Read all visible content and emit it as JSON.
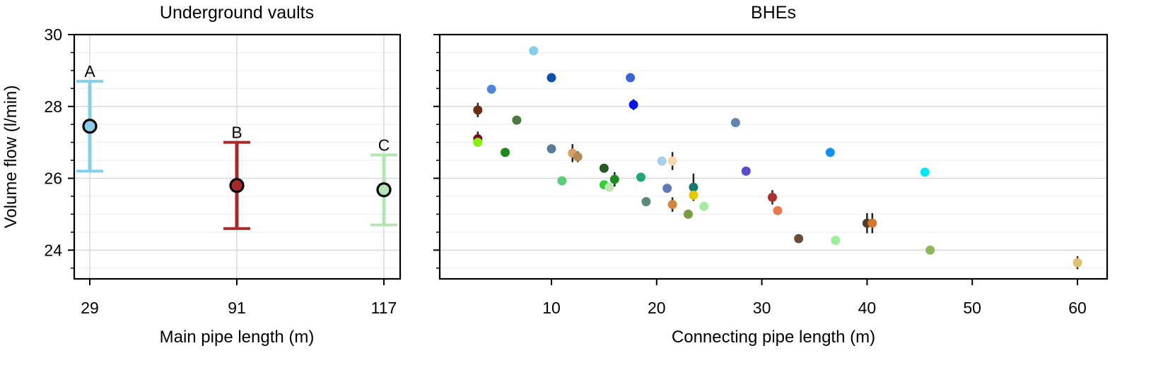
{
  "chart_data": [
    {
      "type": "scatter",
      "title": "Underground vaults",
      "xlabel": "Main pipe length (m)",
      "ylabel": "Volume flow (l/min)",
      "ylim": [
        23.2,
        30
      ],
      "yticks": [
        24,
        26,
        28,
        30
      ],
      "grid": true,
      "x_categories": [
        "29",
        "91",
        "117"
      ],
      "points": [
        {
          "label": "A",
          "x": "29",
          "y": 27.45,
          "err_low": 26.2,
          "err_high": 28.7,
          "color": "#87ceeb"
        },
        {
          "label": "B",
          "x": "91",
          "y": 25.8,
          "err_low": 24.6,
          "err_high": 27.0,
          "color": "#a52a2a"
        },
        {
          "label": "C",
          "x": "117",
          "y": 25.68,
          "err_low": 24.7,
          "err_high": 26.65,
          "color": "#b4e6b4"
        }
      ]
    },
    {
      "type": "scatter",
      "title": "BHEs",
      "xlabel": "Connecting pipe length (m)",
      "ylabel": "",
      "xlim": [
        0,
        62
      ],
      "ylim": [
        23.2,
        30
      ],
      "xticks": [
        10,
        20,
        30,
        40,
        50,
        60
      ],
      "grid": true,
      "points": [
        {
          "x": 8.3,
          "y": 29.55,
          "err": 0.12,
          "color": "#87ceeb"
        },
        {
          "x": 4.3,
          "y": 28.48,
          "err": 0.12,
          "color": "#4f86d6"
        },
        {
          "x": 10.0,
          "y": 28.8,
          "err": 0.12,
          "color": "#0b4fa8"
        },
        {
          "x": 17.5,
          "y": 28.8,
          "err": 0.12,
          "color": "#3a65d8"
        },
        {
          "x": 17.8,
          "y": 28.05,
          "err": 0.15,
          "color": "#0a14e8"
        },
        {
          "x": 3.0,
          "y": 27.9,
          "err": 0.2,
          "color": "#6b2e14"
        },
        {
          "x": 6.7,
          "y": 27.62,
          "err": 0.05,
          "color": "#4a7a40"
        },
        {
          "x": 27.5,
          "y": 27.55,
          "err": 0.1,
          "color": "#5f86b0"
        },
        {
          "x": 3.0,
          "y": 27.1,
          "err": 0.2,
          "color": "#7a0d1e"
        },
        {
          "x": 3.0,
          "y": 27.0,
          "err": 0.05,
          "color": "#8aee10"
        },
        {
          "x": 5.6,
          "y": 26.72,
          "err": 0.05,
          "color": "#1e8a1e"
        },
        {
          "x": 10.0,
          "y": 26.82,
          "err": 0.1,
          "color": "#5a7a9a"
        },
        {
          "x": 12.0,
          "y": 26.7,
          "err": 0.25,
          "color": "#d9a066"
        },
        {
          "x": 12.5,
          "y": 26.6,
          "err": 0.15,
          "color": "#b78a5a"
        },
        {
          "x": 20.5,
          "y": 26.48,
          "err": 0.12,
          "color": "#a8d0ea"
        },
        {
          "x": 21.5,
          "y": 26.48,
          "err": 0.25,
          "color": "#f4d8b0"
        },
        {
          "x": 15.0,
          "y": 26.28,
          "err": 0.1,
          "color": "#2a5a2a"
        },
        {
          "x": 28.5,
          "y": 26.2,
          "err": 0.05,
          "color": "#5a4ad0"
        },
        {
          "x": 36.5,
          "y": 26.72,
          "err": 0.05,
          "color": "#1590f0"
        },
        {
          "x": 45.5,
          "y": 26.17,
          "err": 0.12,
          "color": "#05e5f5"
        },
        {
          "x": 11.0,
          "y": 25.93,
          "err": 0.05,
          "color": "#5acc7a"
        },
        {
          "x": 15.0,
          "y": 25.82,
          "err": 0.05,
          "color": "#38cc38"
        },
        {
          "x": 15.5,
          "y": 25.75,
          "err": 0.05,
          "color": "#bfe8b0"
        },
        {
          "x": 16.0,
          "y": 25.97,
          "err": 0.2,
          "color": "#1e8c1e"
        },
        {
          "x": 18.5,
          "y": 26.03,
          "err": 0.08,
          "color": "#20a870"
        },
        {
          "x": 21.0,
          "y": 25.72,
          "err": 0.08,
          "color": "#5f7ab6"
        },
        {
          "x": 23.5,
          "y": 25.75,
          "err": 0.38,
          "color": "#147a72"
        },
        {
          "x": 23.5,
          "y": 25.53,
          "err": 0.1,
          "color": "#e8c800"
        },
        {
          "x": 19.0,
          "y": 25.35,
          "err": 0.05,
          "color": "#5a8a7a"
        },
        {
          "x": 21.5,
          "y": 25.27,
          "err": 0.2,
          "color": "#d2843a"
        },
        {
          "x": 23.0,
          "y": 25.0,
          "err": 0.05,
          "color": "#7a9a40"
        },
        {
          "x": 24.5,
          "y": 25.22,
          "err": 0.05,
          "color": "#a8e8a0"
        },
        {
          "x": 31.0,
          "y": 25.47,
          "err": 0.2,
          "color": "#a83030"
        },
        {
          "x": 31.5,
          "y": 25.1,
          "err": 0.12,
          "color": "#e87a50"
        },
        {
          "x": 33.5,
          "y": 24.32,
          "err": 0.05,
          "color": "#6b4a36"
        },
        {
          "x": 37.0,
          "y": 24.27,
          "err": 0.05,
          "color": "#98f098"
        },
        {
          "x": 40.0,
          "y": 24.75,
          "err": 0.28,
          "color": "#5a3a28"
        },
        {
          "x": 40.5,
          "y": 24.75,
          "err": 0.28,
          "color": "#d07a2a"
        },
        {
          "x": 46.0,
          "y": 24.0,
          "err": 0.05,
          "color": "#8ab85a"
        },
        {
          "x": 60.0,
          "y": 23.65,
          "err": 0.18,
          "color": "#e0c070"
        }
      ]
    }
  ],
  "colors": {
    "axis": "#000000",
    "grid": "#d8d8d8",
    "errorbar": "#222222"
  }
}
